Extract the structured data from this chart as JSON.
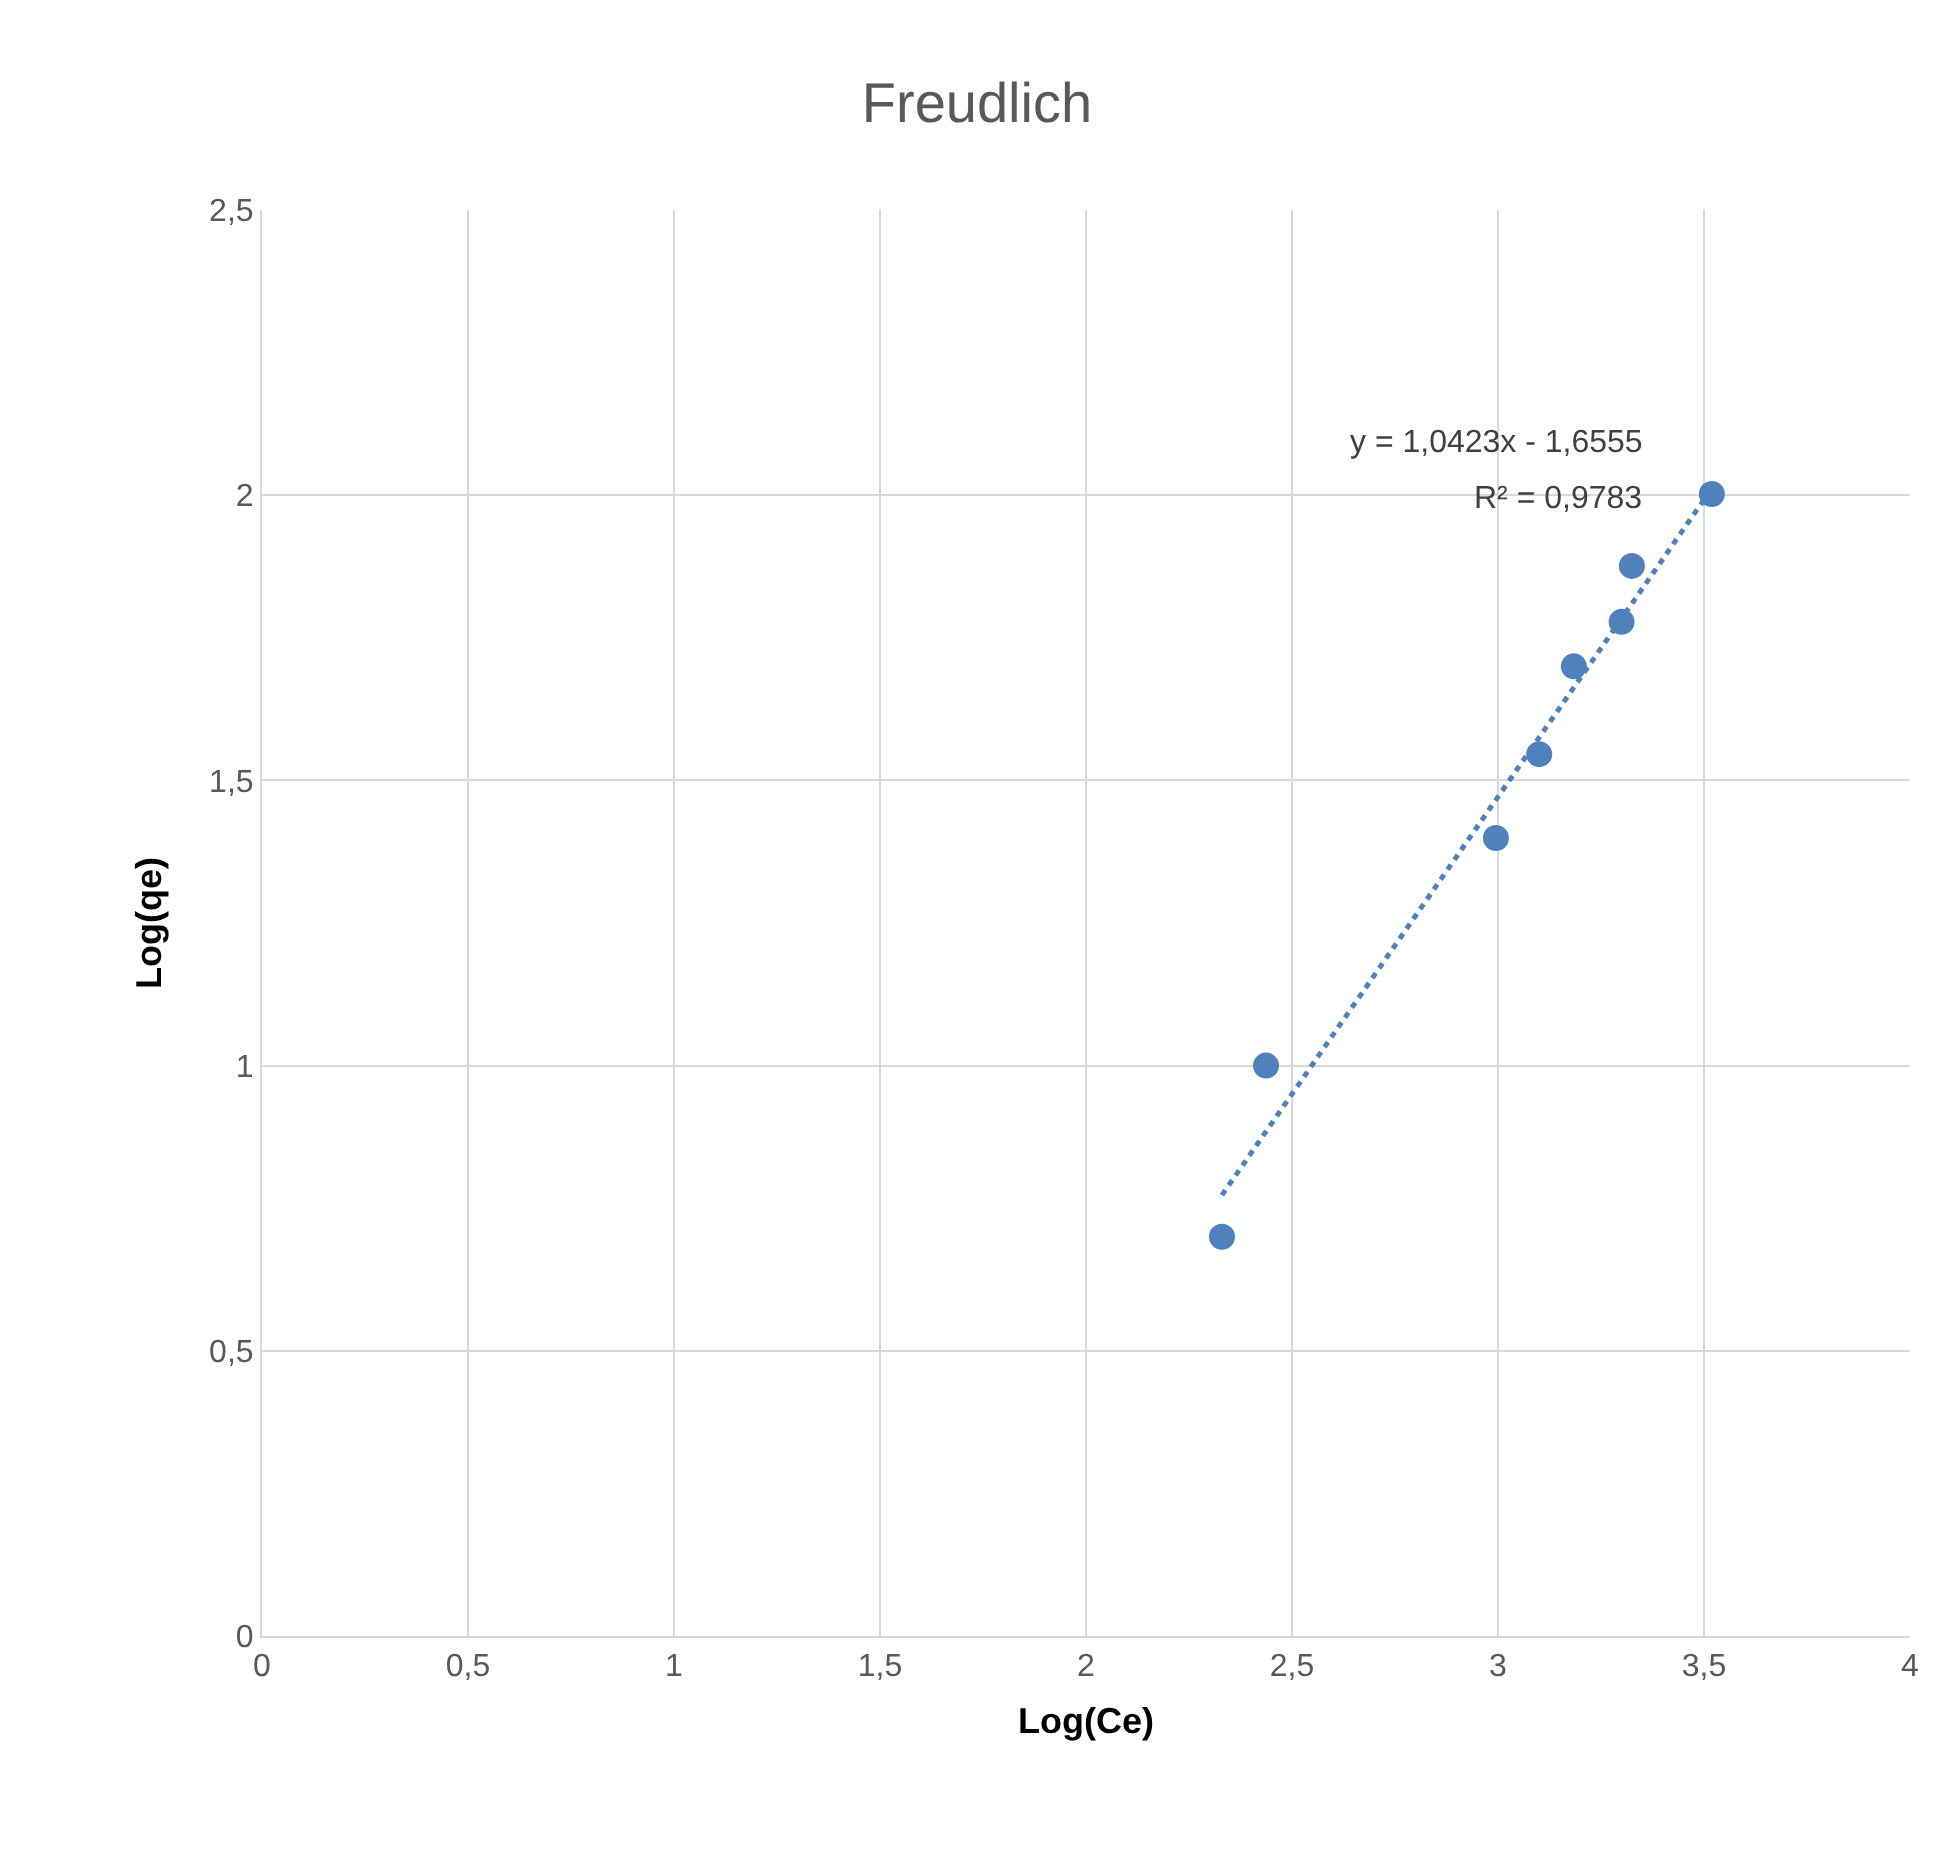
{
  "chart_data": {
    "type": "scatter",
    "title": "Freudlich",
    "xlabel": "Log(Ce)",
    "ylabel": "Log(qe)",
    "series": [
      {
        "color": "#4f81bd",
        "marker": "circle",
        "x": [
          2.33,
          2.437,
          2.995,
          3.1,
          3.184,
          3.3,
          3.325,
          3.519
        ],
        "values": [
          0.7,
          1.0,
          1.399,
          1.546,
          1.7,
          1.778,
          1.876,
          2.002
        ]
      },
      {
        "type": "line",
        "color": "#4f81bd",
        "line_style": "dotted",
        "marker": "none",
        "x": [
          2.33,
          3.519
        ],
        "values": [
          0.773,
          2.012
        ]
      }
    ],
    "annotations": [
      "y = 1,0423x - 1,6555",
      "R² = 0,9783"
    ],
    "xlim": [
      0,
      4
    ],
    "ylim": [
      0,
      2.5
    ],
    "xticks": [
      0,
      {
        "value": 0.5,
        "label": "0,5"
      },
      1,
      {
        "value": 1.5,
        "label": "1,5"
      },
      2,
      {
        "value": 2.5,
        "label": "2,5"
      },
      3,
      {
        "value": 3.5,
        "label": "3,5"
      },
      4
    ],
    "yticks": [
      0,
      {
        "value": 0.5,
        "label": "0,5"
      },
      1,
      {
        "value": 1.5,
        "label": "1,5"
      },
      2,
      {
        "value": 2.5,
        "label": "2,5"
      }
    ],
    "grid": true
  }
}
